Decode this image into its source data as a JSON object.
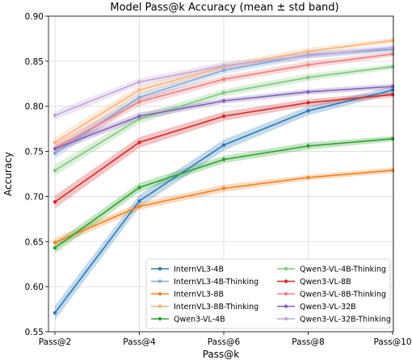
{
  "chart_data": {
    "type": "line",
    "title": "Model Pass@k Accuracy (mean ± std band)",
    "xlabel": "Pass@k",
    "ylabel": "Accuracy",
    "categories": [
      "Pass@2",
      "Pass@4",
      "Pass@6",
      "Pass@8",
      "Pass@10"
    ],
    "ylim": [
      0.55,
      0.9
    ],
    "yticks": [
      "0.55",
      "0.60",
      "0.65",
      "0.70",
      "0.75",
      "0.80",
      "0.85",
      "0.90"
    ],
    "grid": true,
    "legend_position": "lower-right",
    "series": [
      {
        "name": "InternVL3-4B",
        "color": "#2a7ab9",
        "values": [
          0.571,
          0.695,
          0.757,
          0.795,
          0.818
        ],
        "band": [
          0.008,
          0.007,
          0.006,
          0.005,
          0.004
        ]
      },
      {
        "name": "InternVL3-4B-Thinking",
        "color": "#7fa9d6",
        "values": [
          0.748,
          0.81,
          0.84,
          0.857,
          0.863
        ],
        "band": [
          0.006,
          0.005,
          0.004,
          0.004,
          0.003
        ]
      },
      {
        "name": "InternVL3-8B",
        "color": "#f58220",
        "values": [
          0.649,
          0.689,
          0.709,
          0.721,
          0.729
        ],
        "band": [
          0.005,
          0.004,
          0.004,
          0.003,
          0.003
        ]
      },
      {
        "name": "InternVL3-8B-Thinking",
        "color": "#f9b27a",
        "values": [
          0.76,
          0.818,
          0.844,
          0.861,
          0.873
        ],
        "band": [
          0.006,
          0.005,
          0.004,
          0.004,
          0.003
        ]
      },
      {
        "name": "Qwen3-VL-4B",
        "color": "#2ca02c",
        "values": [
          0.643,
          0.71,
          0.741,
          0.756,
          0.764
        ],
        "band": [
          0.006,
          0.005,
          0.004,
          0.004,
          0.003
        ]
      },
      {
        "name": "Qwen3-VL-4B-Thinking",
        "color": "#7dc87d",
        "values": [
          0.729,
          0.786,
          0.815,
          0.832,
          0.844
        ],
        "band": [
          0.006,
          0.005,
          0.004,
          0.004,
          0.003
        ]
      },
      {
        "name": "Qwen3-VL-8B",
        "color": "#d62728",
        "values": [
          0.694,
          0.76,
          0.789,
          0.804,
          0.813
        ],
        "band": [
          0.007,
          0.006,
          0.005,
          0.004,
          0.003
        ]
      },
      {
        "name": "Qwen3-VL-8B-Thinking",
        "color": "#ee7f80",
        "values": [
          0.753,
          0.805,
          0.83,
          0.846,
          0.858
        ],
        "band": [
          0.006,
          0.005,
          0.004,
          0.004,
          0.003
        ]
      },
      {
        "name": "Qwen3-VL-32B",
        "color": "#8660b8",
        "values": [
          0.753,
          0.789,
          0.806,
          0.816,
          0.822
        ],
        "band": [
          0.004,
          0.004,
          0.003,
          0.003,
          0.003
        ]
      },
      {
        "name": "Qwen3-VL-32B-Thinking",
        "color": "#c2a6dc",
        "values": [
          0.79,
          0.827,
          0.845,
          0.856,
          0.865
        ],
        "band": [
          0.005,
          0.004,
          0.004,
          0.003,
          0.003
        ]
      }
    ]
  }
}
